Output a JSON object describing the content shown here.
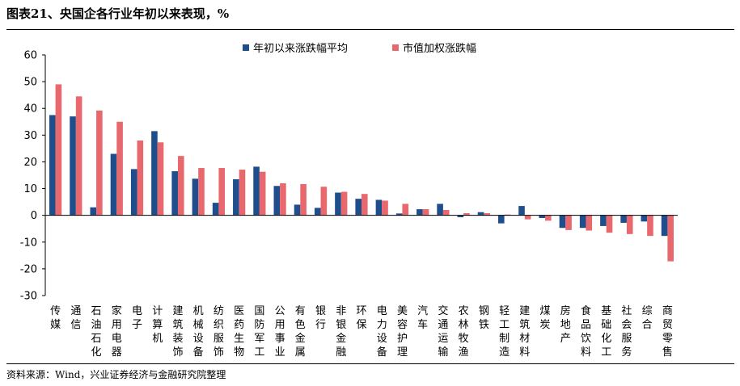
{
  "header": {
    "title": "图表21、央国企各行业年初以来表现，%"
  },
  "footer": {
    "source": "资料来源：Wind，兴业证券经济与金融研究院整理"
  },
  "chart_data": {
    "type": "bar",
    "title": "",
    "xlabel": "",
    "ylabel": "",
    "ylim": [
      -30,
      60
    ],
    "yticks": [
      -30,
      -20,
      -10,
      0,
      10,
      20,
      30,
      40,
      50,
      60
    ],
    "legend_position": "top-center",
    "categories": [
      "传媒",
      "通信",
      "石油石化",
      "家用电器",
      "电子",
      "计算机",
      "建筑装饰",
      "机械设备",
      "纺织服饰",
      "医药生物",
      "国防军工",
      "公用事业",
      "有色金属",
      "银行",
      "非银金融",
      "环保",
      "电力设备",
      "美容护理",
      "汽车",
      "交通运输",
      "农林牧渔",
      "钢铁",
      "轻工制造",
      "建筑材料",
      "煤炭",
      "房地产",
      "食品饮料",
      "基础化工",
      "社会服务",
      "综合",
      "商贸零售"
    ],
    "series": [
      {
        "name": "年初以来涨跌幅平均",
        "color": "#1f4e8c",
        "values": [
          37.5,
          37.0,
          3.0,
          23.0,
          17.3,
          31.5,
          16.5,
          13.7,
          4.7,
          13.5,
          18.2,
          11.0,
          4.0,
          2.8,
          8.5,
          6.2,
          5.8,
          0.7,
          2.3,
          4.3,
          -0.7,
          1.2,
          -3.0,
          3.5,
          -1.0,
          -4.7,
          -4.7,
          -4.0,
          -2.8,
          -2.3,
          -7.7
        ]
      },
      {
        "name": "市值加权涨跌幅",
        "color": "#e8686e",
        "values": [
          49.0,
          44.5,
          39.2,
          35.0,
          28.0,
          27.3,
          22.2,
          17.7,
          17.7,
          17.1,
          16.3,
          12.0,
          11.7,
          10.7,
          8.8,
          8.0,
          5.5,
          4.3,
          2.3,
          2.0,
          0.8,
          0.8,
          0.3,
          -1.5,
          -2.0,
          -5.5,
          -5.7,
          -6.5,
          -7.0,
          -7.7,
          -17.2
        ]
      }
    ]
  }
}
